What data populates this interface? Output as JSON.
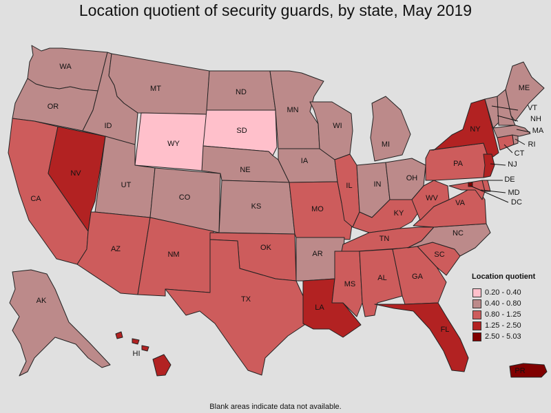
{
  "title": "Location quotient of security guards, by state, May 2019",
  "footnote": "Blank areas indicate data not available.",
  "legend": {
    "title": "Location quotient",
    "items": [
      {
        "label": "0.20 - 0.40",
        "color": "#ffc0cb"
      },
      {
        "label": "0.40 - 0.80",
        "color": "#bc8a8a"
      },
      {
        "label": "0.80 - 1.25",
        "color": "#cd5c5c"
      },
      {
        "label": "1.25 - 2.50",
        "color": "#b22222"
      },
      {
        "label": "2.50 - 5.03",
        "color": "#800000"
      }
    ]
  },
  "states": [
    {
      "abbr": "WA",
      "class": 1
    },
    {
      "abbr": "OR",
      "class": 1
    },
    {
      "abbr": "CA",
      "class": 2
    },
    {
      "abbr": "NV",
      "class": 3
    },
    {
      "abbr": "ID",
      "class": 1
    },
    {
      "abbr": "MT",
      "class": 1
    },
    {
      "abbr": "WY",
      "class": 0
    },
    {
      "abbr": "UT",
      "class": 1
    },
    {
      "abbr": "AZ",
      "class": 2
    },
    {
      "abbr": "CO",
      "class": 1
    },
    {
      "abbr": "NM",
      "class": 2
    },
    {
      "abbr": "ND",
      "class": 1
    },
    {
      "abbr": "SD",
      "class": 0
    },
    {
      "abbr": "NE",
      "class": 1
    },
    {
      "abbr": "KS",
      "class": 1
    },
    {
      "abbr": "OK",
      "class": 2
    },
    {
      "abbr": "TX",
      "class": 2
    },
    {
      "abbr": "MN",
      "class": 1
    },
    {
      "abbr": "IA",
      "class": 1
    },
    {
      "abbr": "MO",
      "class": 2
    },
    {
      "abbr": "AR",
      "class": 1
    },
    {
      "abbr": "LA",
      "class": 3
    },
    {
      "abbr": "WI",
      "class": 1
    },
    {
      "abbr": "IL",
      "class": 2
    },
    {
      "abbr": "MI",
      "class": 1
    },
    {
      "abbr": "IN",
      "class": 1
    },
    {
      "abbr": "OH",
      "class": 1
    },
    {
      "abbr": "KY",
      "class": 2
    },
    {
      "abbr": "TN",
      "class": 2
    },
    {
      "abbr": "MS",
      "class": 2
    },
    {
      "abbr": "AL",
      "class": 2
    },
    {
      "abbr": "GA",
      "class": 2
    },
    {
      "abbr": "FL",
      "class": 3
    },
    {
      "abbr": "SC",
      "class": 2
    },
    {
      "abbr": "NC",
      "class": 1
    },
    {
      "abbr": "VA",
      "class": 2
    },
    {
      "abbr": "WV",
      "class": 2
    },
    {
      "abbr": "PA",
      "class": 2
    },
    {
      "abbr": "NY",
      "class": 3
    },
    {
      "abbr": "VT",
      "class": 1
    },
    {
      "abbr": "NH",
      "class": 1
    },
    {
      "abbr": "ME",
      "class": 1
    },
    {
      "abbr": "MA",
      "class": 1
    },
    {
      "abbr": "RI",
      "class": 1
    },
    {
      "abbr": "CT",
      "class": 2
    },
    {
      "abbr": "NJ",
      "class": 3
    },
    {
      "abbr": "DE",
      "class": 2
    },
    {
      "abbr": "MD",
      "class": 2
    },
    {
      "abbr": "DC",
      "class": 4
    },
    {
      "abbr": "AK",
      "class": 1
    },
    {
      "abbr": "HI",
      "class": 3
    },
    {
      "abbr": "PR",
      "class": 4
    }
  ]
}
